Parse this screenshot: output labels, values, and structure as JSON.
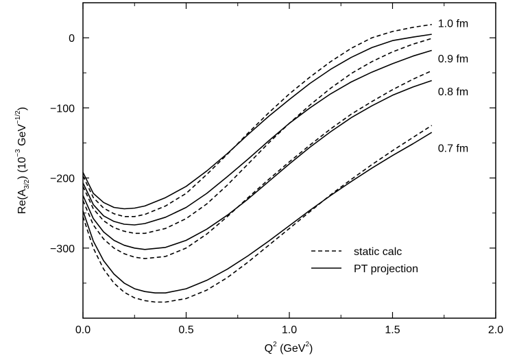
{
  "chart_data": {
    "type": "line",
    "xlim": [
      0.0,
      2.0
    ],
    "ylim": [
      -400,
      50
    ],
    "x_ticks": [
      0.0,
      0.5,
      1.0,
      1.5,
      2.0
    ],
    "x_tick_labels": [
      "0.0",
      "0.5",
      "1.0",
      "1.5",
      "2.0"
    ],
    "y_ticks": [
      0,
      -100,
      -200,
      -300
    ],
    "y_tick_labels": [
      "0",
      "−100",
      "−200",
      "−300"
    ],
    "xlabel": {
      "base": "Q",
      "sup": "2",
      "rest": " (GeV",
      "sup2": "2",
      "end": ")"
    },
    "ylabel": {
      "a": "Re(A",
      "sub": "3/2",
      "b": ") (10",
      "sup1": "−3",
      "c": " GeV",
      "sup2": "−1/2",
      "d": ")"
    },
    "grid": false,
    "legend": {
      "placement": "bottom-right",
      "entries": [
        {
          "style": "dashed",
          "label": "static calc"
        },
        {
          "style": "solid",
          "label": "PT projection"
        }
      ]
    },
    "curve_labels": [
      {
        "text": "1.0 fm",
        "x": 1.72,
        "y": 21
      },
      {
        "text": "0.9 fm",
        "x": 1.72,
        "y": -29
      },
      {
        "text": "0.8 fm",
        "x": 1.72,
        "y": -76
      },
      {
        "text": "0.7 fm",
        "x": 1.72,
        "y": -157
      }
    ],
    "series": [
      {
        "label": "1.0 fm",
        "style": "solid",
        "points": [
          [
            0,
            -192
          ],
          [
            0.05,
            -222
          ],
          [
            0.1,
            -235
          ],
          [
            0.15,
            -242
          ],
          [
            0.2,
            -244
          ],
          [
            0.25,
            -243
          ],
          [
            0.3,
            -240
          ],
          [
            0.4,
            -228
          ],
          [
            0.5,
            -212
          ],
          [
            0.6,
            -190
          ],
          [
            0.7,
            -165
          ],
          [
            0.8,
            -138
          ],
          [
            0.9,
            -112
          ],
          [
            1.0,
            -88
          ],
          [
            1.1,
            -65
          ],
          [
            1.2,
            -45
          ],
          [
            1.3,
            -28
          ],
          [
            1.4,
            -14
          ],
          [
            1.5,
            -4
          ],
          [
            1.6,
            1
          ],
          [
            1.69,
            5
          ]
        ]
      },
      {
        "label": "1.0 fm",
        "style": "dashed",
        "points": [
          [
            0,
            -197
          ],
          [
            0.05,
            -228
          ],
          [
            0.1,
            -243
          ],
          [
            0.15,
            -251
          ],
          [
            0.2,
            -255
          ],
          [
            0.25,
            -255
          ],
          [
            0.3,
            -252
          ],
          [
            0.4,
            -240
          ],
          [
            0.5,
            -222
          ],
          [
            0.6,
            -195
          ],
          [
            0.7,
            -166
          ],
          [
            0.8,
            -136
          ],
          [
            0.9,
            -107
          ],
          [
            1.0,
            -80
          ],
          [
            1.1,
            -56
          ],
          [
            1.2,
            -34
          ],
          [
            1.3,
            -15
          ],
          [
            1.4,
            0
          ],
          [
            1.5,
            9
          ],
          [
            1.6,
            15
          ],
          [
            1.69,
            19
          ]
        ]
      },
      {
        "label": "0.9 fm",
        "style": "solid",
        "points": [
          [
            0,
            -207
          ],
          [
            0.05,
            -238
          ],
          [
            0.1,
            -254
          ],
          [
            0.15,
            -262
          ],
          [
            0.2,
            -266
          ],
          [
            0.25,
            -267
          ],
          [
            0.3,
            -265
          ],
          [
            0.4,
            -256
          ],
          [
            0.5,
            -242
          ],
          [
            0.6,
            -222
          ],
          [
            0.7,
            -198
          ],
          [
            0.8,
            -173
          ],
          [
            0.9,
            -147
          ],
          [
            1.0,
            -122
          ],
          [
            1.1,
            -100
          ],
          [
            1.2,
            -80
          ],
          [
            1.3,
            -63
          ],
          [
            1.4,
            -49
          ],
          [
            1.5,
            -37
          ],
          [
            1.6,
            -26
          ],
          [
            1.69,
            -18
          ]
        ]
      },
      {
        "label": "0.9 fm",
        "style": "dashed",
        "points": [
          [
            0,
            -212
          ],
          [
            0.05,
            -244
          ],
          [
            0.1,
            -261
          ],
          [
            0.15,
            -271
          ],
          [
            0.2,
            -276
          ],
          [
            0.25,
            -279
          ],
          [
            0.3,
            -279
          ],
          [
            0.4,
            -272
          ],
          [
            0.5,
            -258
          ],
          [
            0.6,
            -237
          ],
          [
            0.7,
            -210
          ],
          [
            0.8,
            -180
          ],
          [
            0.9,
            -150
          ],
          [
            1.0,
            -122
          ],
          [
            1.1,
            -96
          ],
          [
            1.2,
            -72
          ],
          [
            1.3,
            -51
          ],
          [
            1.4,
            -34
          ],
          [
            1.5,
            -20
          ],
          [
            1.6,
            -9
          ],
          [
            1.69,
            -1
          ]
        ]
      },
      {
        "label": "0.8 fm",
        "style": "solid",
        "points": [
          [
            0,
            -225
          ],
          [
            0.05,
            -258
          ],
          [
            0.1,
            -277
          ],
          [
            0.15,
            -289
          ],
          [
            0.2,
            -296
          ],
          [
            0.25,
            -300
          ],
          [
            0.3,
            -302
          ],
          [
            0.4,
            -299
          ],
          [
            0.5,
            -289
          ],
          [
            0.6,
            -273
          ],
          [
            0.7,
            -253
          ],
          [
            0.8,
            -230
          ],
          [
            0.9,
            -205
          ],
          [
            1.0,
            -180
          ],
          [
            1.1,
            -156
          ],
          [
            1.2,
            -134
          ],
          [
            1.3,
            -114
          ],
          [
            1.4,
            -97
          ],
          [
            1.5,
            -82
          ],
          [
            1.6,
            -70
          ],
          [
            1.69,
            -61
          ]
        ]
      },
      {
        "label": "0.8 fm",
        "style": "dashed",
        "points": [
          [
            0,
            -232
          ],
          [
            0.05,
            -267
          ],
          [
            0.1,
            -287
          ],
          [
            0.15,
            -300
          ],
          [
            0.2,
            -308
          ],
          [
            0.25,
            -313
          ],
          [
            0.3,
            -315
          ],
          [
            0.4,
            -312
          ],
          [
            0.5,
            -300
          ],
          [
            0.6,
            -280
          ],
          [
            0.7,
            -255
          ],
          [
            0.8,
            -228
          ],
          [
            0.9,
            -202
          ],
          [
            1.0,
            -177
          ],
          [
            1.1,
            -153
          ],
          [
            1.2,
            -130
          ],
          [
            1.3,
            -109
          ],
          [
            1.4,
            -91
          ],
          [
            1.5,
            -74
          ],
          [
            1.6,
            -59
          ],
          [
            1.69,
            -47
          ]
        ]
      },
      {
        "label": "0.7 fm",
        "style": "solid",
        "points": [
          [
            0,
            -247
          ],
          [
            0.05,
            -290
          ],
          [
            0.1,
            -318
          ],
          [
            0.15,
            -337
          ],
          [
            0.2,
            -350
          ],
          [
            0.25,
            -358
          ],
          [
            0.3,
            -362
          ],
          [
            0.35,
            -364
          ],
          [
            0.4,
            -364
          ],
          [
            0.5,
            -358
          ],
          [
            0.6,
            -346
          ],
          [
            0.7,
            -330
          ],
          [
            0.8,
            -311
          ],
          [
            0.9,
            -290
          ],
          [
            1.0,
            -268
          ],
          [
            1.1,
            -246
          ],
          [
            1.2,
            -225
          ],
          [
            1.3,
            -205
          ],
          [
            1.4,
            -186
          ],
          [
            1.5,
            -168
          ],
          [
            1.6,
            -151
          ],
          [
            1.69,
            -135
          ]
        ]
      },
      {
        "label": "0.7 fm",
        "style": "dashed",
        "points": [
          [
            0,
            -255
          ],
          [
            0.05,
            -300
          ],
          [
            0.1,
            -330
          ],
          [
            0.15,
            -350
          ],
          [
            0.2,
            -363
          ],
          [
            0.25,
            -371
          ],
          [
            0.3,
            -375
          ],
          [
            0.35,
            -377
          ],
          [
            0.4,
            -377
          ],
          [
            0.5,
            -372
          ],
          [
            0.6,
            -360
          ],
          [
            0.7,
            -342
          ],
          [
            0.8,
            -320
          ],
          [
            0.9,
            -296
          ],
          [
            1.0,
            -272
          ],
          [
            1.1,
            -248
          ],
          [
            1.2,
            -224
          ],
          [
            1.3,
            -202
          ],
          [
            1.4,
            -181
          ],
          [
            1.5,
            -161
          ],
          [
            1.6,
            -142
          ],
          [
            1.69,
            -125
          ]
        ]
      }
    ]
  }
}
